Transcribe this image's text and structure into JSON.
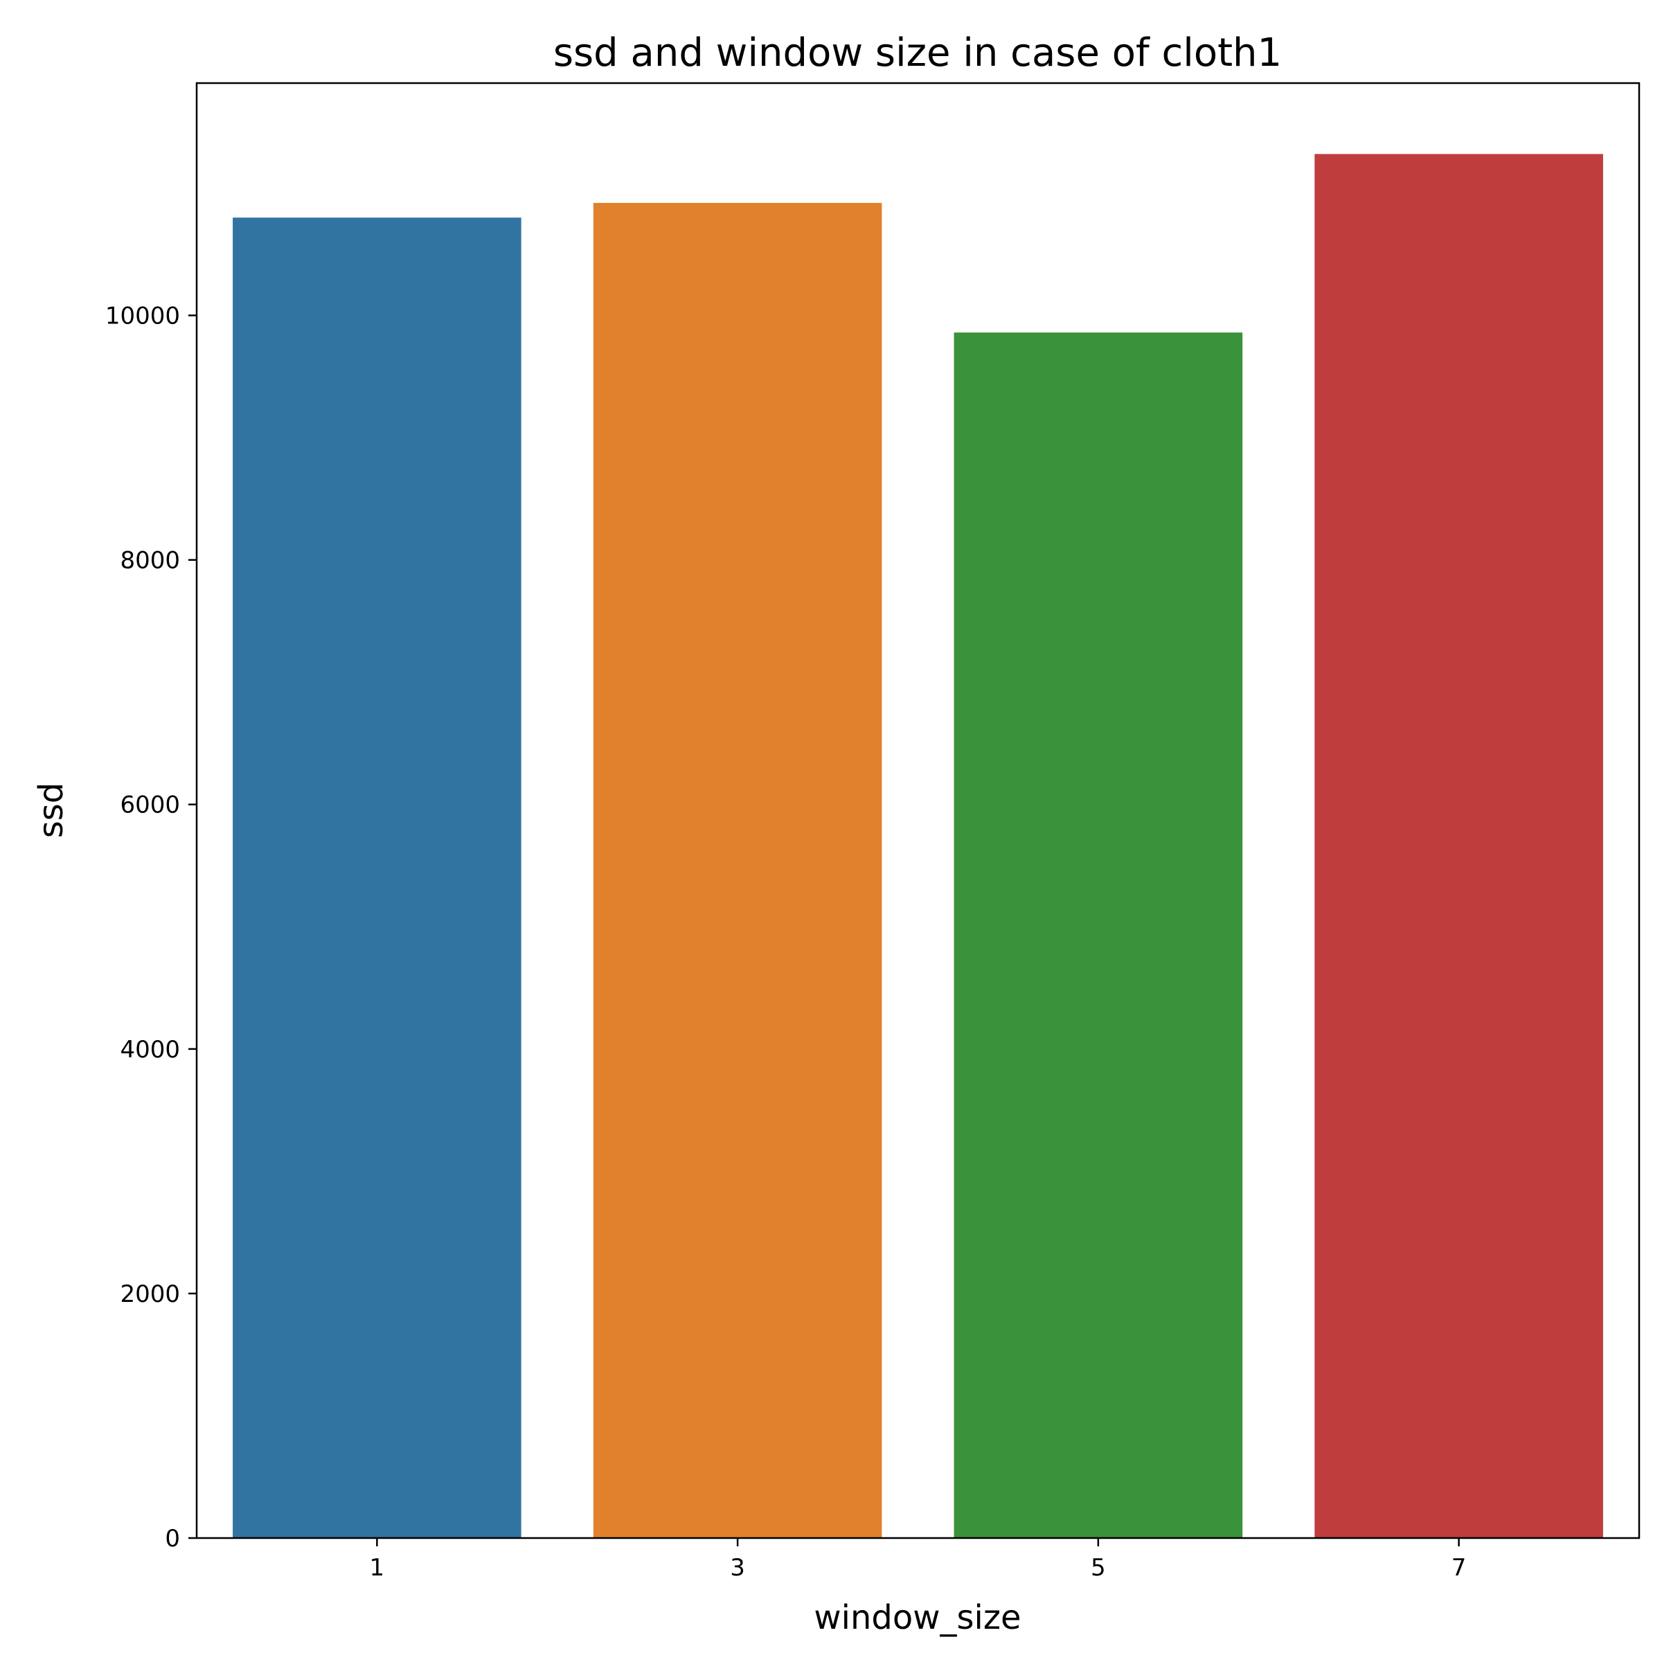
{
  "chart_data": {
    "type": "bar",
    "title": "ssd and window size in case of cloth1",
    "xlabel": "window_size",
    "ylabel": "ssd",
    "categories": [
      "1",
      "3",
      "5",
      "7"
    ],
    "values": [
      10800,
      10920,
      9860,
      11320
    ],
    "colors": [
      "#3274a1",
      "#e1812c",
      "#3a923a",
      "#c03d3e"
    ],
    "yticks": [
      0,
      2000,
      4000,
      6000,
      8000,
      10000
    ],
    "ylim": [
      0,
      11900
    ],
    "grid": false,
    "legend": "none"
  }
}
